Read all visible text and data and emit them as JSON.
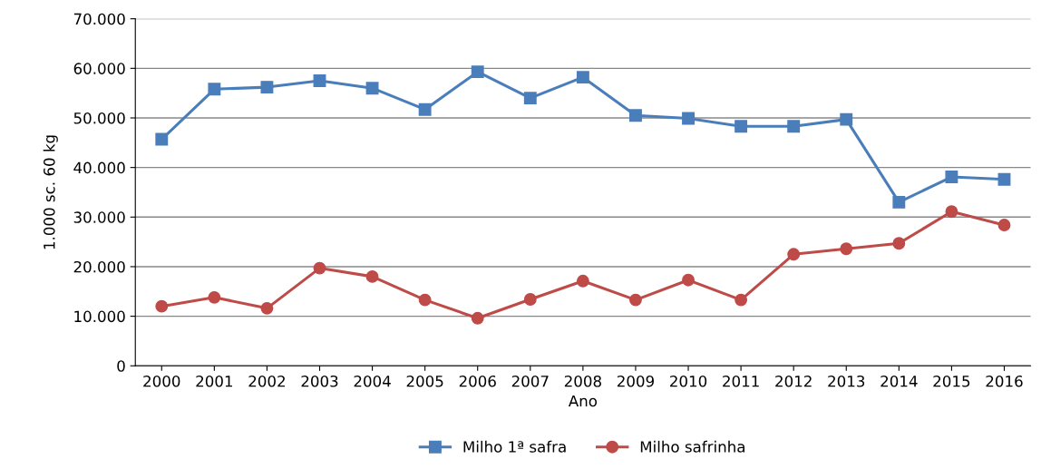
{
  "chart_data": {
    "type": "line",
    "xlabel": "Ano",
    "ylabel": "1.000 sc. 60 kg",
    "categories": [
      "2000",
      "2001",
      "2002",
      "2003",
      "2004",
      "2005",
      "2006",
      "2007",
      "2008",
      "2009",
      "2010",
      "2011",
      "2012",
      "2013",
      "2014",
      "2015",
      "2016"
    ],
    "series": [
      {
        "name": "Milho 1ª safra",
        "color": "#4a7ebb",
        "marker": "square",
        "values": [
          45700,
          55800,
          56200,
          57500,
          56000,
          51700,
          59300,
          54000,
          58200,
          50500,
          49900,
          48300,
          48300,
          49700,
          33000,
          38100,
          37600
        ]
      },
      {
        "name": "Milho safrinha",
        "color": "#be4b48",
        "marker": "circle",
        "values": [
          12000,
          13800,
          11600,
          19700,
          18000,
          13300,
          9600,
          13400,
          17100,
          13300,
          17300,
          13300,
          22500,
          23600,
          24700,
          31100,
          28400
        ]
      }
    ],
    "ylim": [
      0,
      70000
    ],
    "yticks": [
      0,
      {
        "value": 10000,
        "label": "10.000"
      },
      {
        "value": 20000,
        "label": "20.000"
      },
      {
        "value": 30000,
        "label": "30.000"
      },
      {
        "value": 40000,
        "label": "40.000"
      },
      {
        "value": 50000,
        "label": "50.000"
      },
      {
        "value": 60000,
        "label": "60.000"
      },
      {
        "value": 70000,
        "label": "70.000"
      }
    ],
    "grid": "y",
    "legend": "bottom",
    "line_style": "solid"
  }
}
